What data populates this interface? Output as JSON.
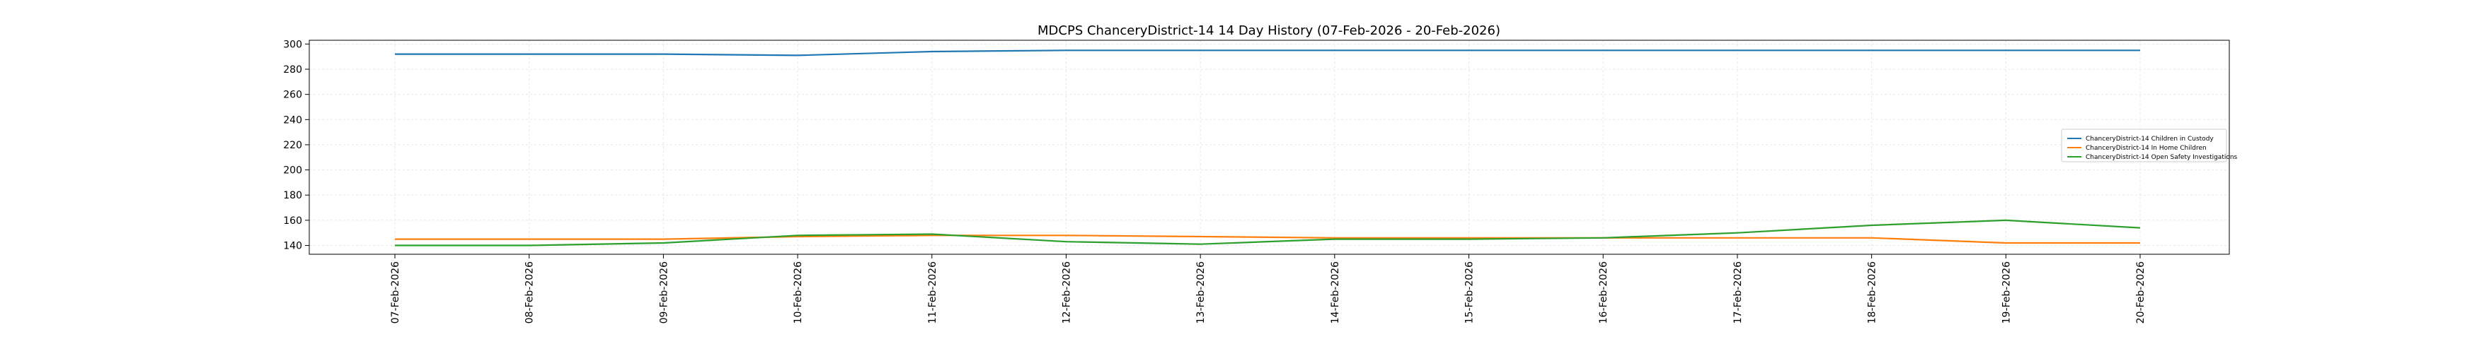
{
  "chart_data": {
    "type": "line",
    "title": "MDCPS ChanceryDistrict-14 14 Day History (07-Feb-2026 - 20-Feb-2026)",
    "xlabel": "",
    "ylabel": "",
    "categories": [
      "07-Feb-2026",
      "08-Feb-2026",
      "09-Feb-2026",
      "10-Feb-2026",
      "11-Feb-2026",
      "12-Feb-2026",
      "13-Feb-2026",
      "14-Feb-2026",
      "15-Feb-2026",
      "16-Feb-2026",
      "17-Feb-2026",
      "18-Feb-2026",
      "19-Feb-2026",
      "20-Feb-2026"
    ],
    "series": [
      {
        "name": "ChanceryDistrict-14 Children in Custody",
        "color": "#1f77b4",
        "values": [
          292,
          292,
          292,
          291,
          294,
          295,
          295,
          295,
          295,
          295,
          295,
          295,
          295,
          295
        ]
      },
      {
        "name": "ChanceryDistrict-14 In Home Children",
        "color": "#ff7f0e",
        "values": [
          145,
          145,
          145,
          147,
          148,
          148,
          147,
          146,
          146,
          146,
          146,
          146,
          142,
          142
        ]
      },
      {
        "name": "ChanceryDistrict-14 Open Safety Investigations",
        "color": "#2ca02c",
        "values": [
          140,
          140,
          142,
          148,
          149,
          143,
          141,
          145,
          145,
          146,
          150,
          156,
          160,
          154
        ]
      }
    ],
    "ylim": [
      133,
      303
    ],
    "yticks": [
      140,
      160,
      180,
      200,
      220,
      240,
      260,
      280,
      300
    ],
    "grid": true,
    "legend_position": "right"
  }
}
